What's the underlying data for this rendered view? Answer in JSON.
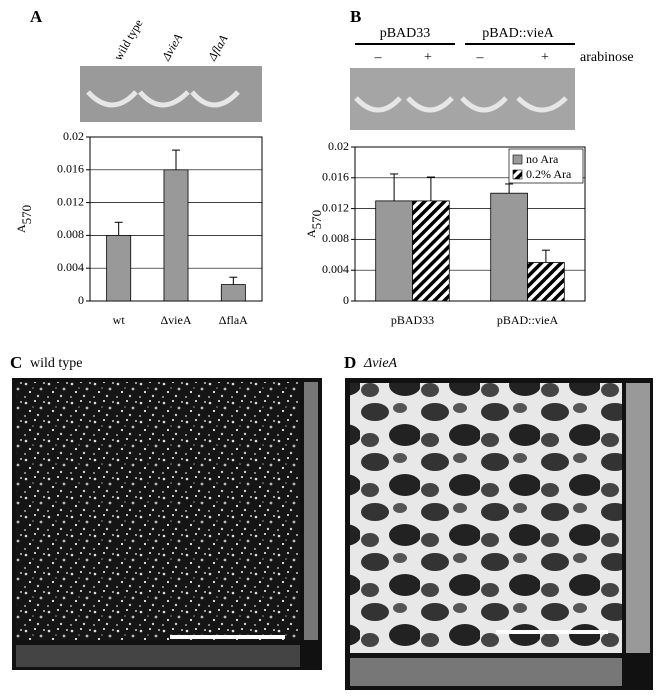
{
  "chart_data": [
    {
      "type": "bar",
      "ylabel": "A",
      "ylabel_subscript": "570",
      "categories": [
        "wt",
        "ΔvieA",
        "ΔflaA"
      ],
      "values": [
        0.008,
        0.016,
        0.002
      ],
      "errors": [
        0.0016,
        0.0024,
        0.0009
      ],
      "color": "#999999",
      "ylim": [
        0,
        0.02
      ],
      "yticks": [
        0,
        0.004,
        0.008,
        0.012,
        0.016,
        0.02
      ],
      "grid": true
    },
    {
      "type": "bar",
      "ylabel": "A",
      "ylabel_subscript": "570",
      "categories": [
        "pBAD33",
        "pBAD::vieA"
      ],
      "series": [
        {
          "name": "no Ara",
          "color": "#999999",
          "values": [
            0.013,
            0.014
          ],
          "errors": [
            0.0035,
            0.0012
          ]
        },
        {
          "name": "0.2% Ara",
          "color": "#000000",
          "hatch": true,
          "values": [
            0.013,
            0.005
          ],
          "errors": [
            0.0031,
            0.0016
          ]
        }
      ],
      "ylim": [
        0,
        0.02
      ],
      "yticks": [
        0,
        0.004,
        0.008,
        0.012,
        0.016,
        0.02
      ],
      "grid": true,
      "legend": "top-right"
    }
  ],
  "panels": {
    "a": {
      "letter": "A",
      "lanes": [
        "wild type",
        "ΔvieA",
        "ΔflaA"
      ]
    },
    "b": {
      "letter": "B",
      "groups": [
        "pBAD33",
        "pBAD::vieA"
      ],
      "signs": [
        "–",
        "+",
        "–",
        "+"
      ],
      "condition": "arabinose"
    },
    "c": {
      "letter": "C",
      "title": "wild type"
    },
    "d": {
      "letter": "D",
      "title": "ΔvieA"
    }
  }
}
